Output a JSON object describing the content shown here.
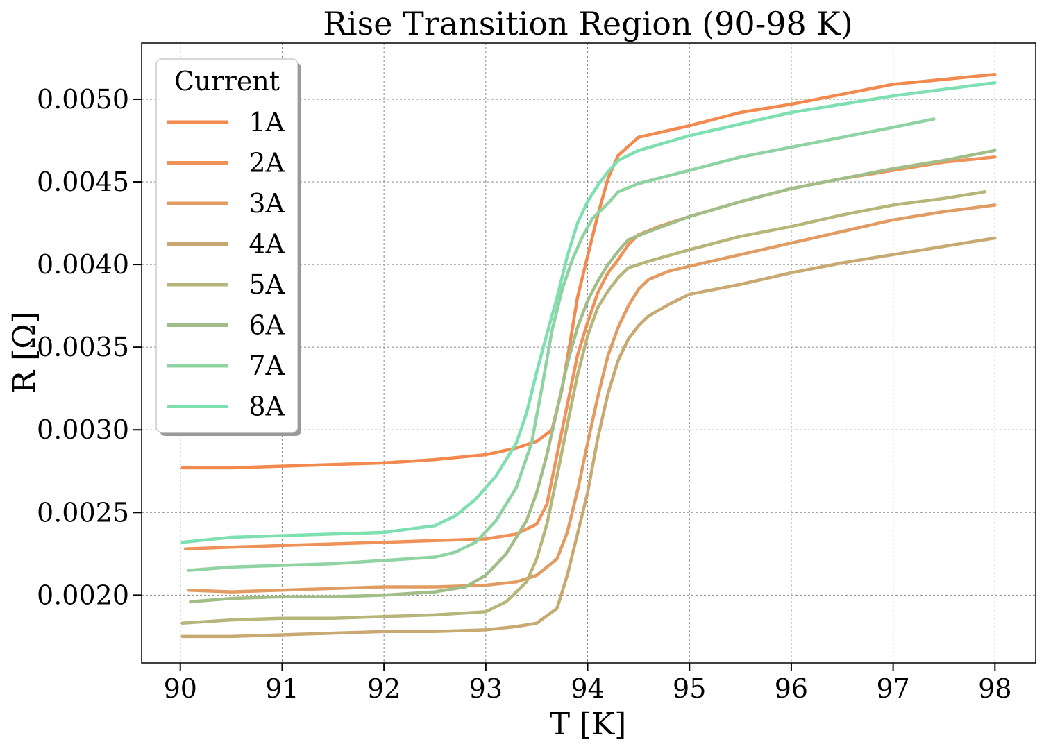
{
  "chart_data": {
    "type": "line",
    "title": "Rise Transition Region (90-98 K)",
    "xlabel": "T [K]",
    "ylabel": "R [Ω]",
    "xlim": [
      89.62,
      98.4
    ],
    "ylim": [
      0.00159,
      0.00534
    ],
    "xticks": [
      90,
      91,
      92,
      93,
      94,
      95,
      96,
      97,
      98
    ],
    "xtick_labels": [
      "90",
      "91",
      "92",
      "93",
      "94",
      "95",
      "96",
      "97",
      "98"
    ],
    "yticks": [
      0.002,
      0.0025,
      0.003,
      0.0035,
      0.004,
      0.0045,
      0.005
    ],
    "ytick_labels": [
      "0.0020",
      "0.0025",
      "0.0030",
      "0.0035",
      "0.0040",
      "0.0045",
      "0.0050"
    ],
    "grid": true,
    "legend": {
      "title": "Current",
      "placement": "top-left"
    },
    "series": [
      {
        "name": "1A",
        "color": "#f28a4f",
        "x": [
          90.02,
          90.5,
          91.0,
          91.5,
          92.0,
          92.5,
          93.0,
          93.3,
          93.5,
          93.65,
          93.75,
          93.82,
          93.9,
          94.0,
          94.1,
          94.2,
          94.3,
          94.5,
          95.0,
          95.5,
          96.0,
          96.5,
          97.0,
          97.5,
          98.0
        ],
        "y": [
          0.00277,
          0.00277,
          0.00278,
          0.00279,
          0.0028,
          0.00282,
          0.00285,
          0.00289,
          0.00293,
          0.003,
          0.00325,
          0.0035,
          0.0038,
          0.00405,
          0.0043,
          0.00452,
          0.00466,
          0.00477,
          0.00484,
          0.00492,
          0.00497,
          0.00503,
          0.00509,
          0.00512,
          0.00515
        ]
      },
      {
        "name": "2A",
        "color": "#ef9259",
        "x": [
          90.05,
          90.5,
          91.0,
          91.5,
          92.0,
          92.5,
          93.0,
          93.3,
          93.5,
          93.6,
          93.7,
          93.8,
          93.9,
          94.0,
          94.1,
          94.2,
          94.3,
          94.4,
          94.5,
          94.7,
          95.0,
          95.5,
          96.0,
          96.5,
          97.0,
          97.5,
          98.0
        ],
        "y": [
          0.00228,
          0.00229,
          0.0023,
          0.00231,
          0.00232,
          0.00233,
          0.00234,
          0.00237,
          0.00243,
          0.00255,
          0.00285,
          0.00315,
          0.00345,
          0.00365,
          0.00383,
          0.00395,
          0.00403,
          0.00412,
          0.00418,
          0.00423,
          0.00429,
          0.00438,
          0.00446,
          0.00452,
          0.00457,
          0.00462,
          0.00465
        ]
      },
      {
        "name": "3A",
        "color": "#e09c62",
        "x": [
          90.08,
          90.5,
          91.0,
          91.5,
          92.0,
          92.5,
          93.0,
          93.3,
          93.5,
          93.7,
          93.8,
          93.9,
          94.0,
          94.1,
          94.2,
          94.3,
          94.4,
          94.5,
          94.6,
          94.8,
          95.0,
          95.5,
          96.0,
          96.5,
          97.0,
          97.5,
          98.0
        ],
        "y": [
          0.00203,
          0.00202,
          0.00203,
          0.00204,
          0.00205,
          0.00205,
          0.00206,
          0.00208,
          0.00212,
          0.00222,
          0.00238,
          0.00263,
          0.00292,
          0.0032,
          0.00345,
          0.00362,
          0.00375,
          0.00385,
          0.00391,
          0.00396,
          0.00399,
          0.00406,
          0.00413,
          0.0042,
          0.00427,
          0.00432,
          0.00436
        ]
      },
      {
        "name": "4A",
        "color": "#c7a971",
        "x": [
          90.02,
          90.5,
          91.0,
          91.5,
          92.0,
          92.5,
          93.0,
          93.3,
          93.5,
          93.7,
          93.8,
          93.9,
          94.0,
          94.1,
          94.2,
          94.3,
          94.4,
          94.5,
          94.6,
          94.8,
          95.0,
          95.5,
          96.0,
          96.5,
          97.0,
          97.5,
          98.0
        ],
        "y": [
          0.00175,
          0.00175,
          0.00176,
          0.00177,
          0.00178,
          0.00178,
          0.00179,
          0.00181,
          0.00183,
          0.00192,
          0.00212,
          0.00237,
          0.00262,
          0.00295,
          0.00322,
          0.00342,
          0.00355,
          0.00363,
          0.00369,
          0.00376,
          0.00382,
          0.00388,
          0.00395,
          0.00401,
          0.00406,
          0.00411,
          0.00416
        ]
      },
      {
        "name": "5A",
        "color": "#b6b67b",
        "x": [
          90.02,
          90.5,
          91.0,
          91.5,
          92.0,
          92.5,
          93.0,
          93.2,
          93.4,
          93.5,
          93.6,
          93.7,
          93.8,
          93.9,
          94.0,
          94.1,
          94.2,
          94.3,
          94.4,
          94.6,
          95.0,
          95.5,
          96.0,
          96.5,
          97.0,
          97.5,
          97.9
        ],
        "y": [
          0.00183,
          0.00185,
          0.00186,
          0.00186,
          0.00187,
          0.00188,
          0.0019,
          0.00196,
          0.00208,
          0.00222,
          0.00243,
          0.00272,
          0.00303,
          0.00333,
          0.00357,
          0.00374,
          0.00384,
          0.00392,
          0.00398,
          0.00402,
          0.00409,
          0.00417,
          0.00423,
          0.0043,
          0.00436,
          0.0044,
          0.00444
        ]
      },
      {
        "name": "6A",
        "color": "#a1bd88",
        "x": [
          90.1,
          90.5,
          91.0,
          91.5,
          92.0,
          92.5,
          92.8,
          93.0,
          93.2,
          93.4,
          93.5,
          93.6,
          93.7,
          93.8,
          93.9,
          94.0,
          94.1,
          94.2,
          94.3,
          94.4,
          94.6,
          95.0,
          95.5,
          96.0,
          96.5,
          97.0,
          97.5,
          98.0
        ],
        "y": [
          0.00196,
          0.00198,
          0.00199,
          0.00199,
          0.002,
          0.00202,
          0.00205,
          0.00212,
          0.00225,
          0.00245,
          0.00262,
          0.00285,
          0.00312,
          0.0034,
          0.00362,
          0.00378,
          0.0039,
          0.004,
          0.00408,
          0.00415,
          0.0042,
          0.00429,
          0.00438,
          0.00446,
          0.00452,
          0.00458,
          0.00463,
          0.00469
        ]
      },
      {
        "name": "7A",
        "color": "#8fd3a2",
        "x": [
          90.08,
          90.5,
          91.0,
          91.5,
          92.0,
          92.5,
          92.7,
          92.9,
          93.1,
          93.3,
          93.45,
          93.55,
          93.65,
          93.75,
          93.85,
          93.95,
          94.05,
          94.2,
          94.3,
          94.5,
          95.0,
          95.5,
          96.0,
          96.5,
          97.0,
          97.4
        ],
        "y": [
          0.00215,
          0.00217,
          0.00218,
          0.00219,
          0.00221,
          0.00223,
          0.00226,
          0.00232,
          0.00245,
          0.00265,
          0.00292,
          0.00325,
          0.0036,
          0.00385,
          0.00403,
          0.00417,
          0.00428,
          0.00437,
          0.00444,
          0.00449,
          0.00457,
          0.00465,
          0.00471,
          0.00477,
          0.00483,
          0.00488
        ]
      },
      {
        "name": "8A",
        "color": "#7ee0b0",
        "x": [
          90.02,
          90.5,
          91.0,
          91.5,
          92.0,
          92.5,
          92.7,
          92.9,
          93.1,
          93.3,
          93.4,
          93.5,
          93.6,
          93.7,
          93.8,
          93.9,
          94.0,
          94.1,
          94.2,
          94.3,
          94.5,
          95.0,
          95.5,
          96.0,
          96.5,
          97.0,
          97.5,
          98.0
        ],
        "y": [
          0.00232,
          0.00235,
          0.00236,
          0.00237,
          0.00238,
          0.00242,
          0.00248,
          0.00258,
          0.00272,
          0.00292,
          0.0031,
          0.00335,
          0.00358,
          0.0038,
          0.00405,
          0.00425,
          0.00438,
          0.00448,
          0.00456,
          0.00463,
          0.00469,
          0.00478,
          0.00485,
          0.00492,
          0.00497,
          0.00502,
          0.00506,
          0.0051
        ]
      }
    ]
  }
}
